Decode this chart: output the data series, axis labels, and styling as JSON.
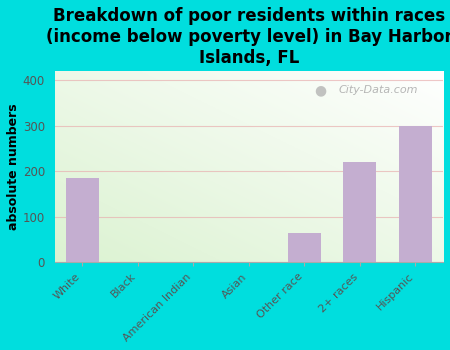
{
  "categories": [
    "White",
    "Black",
    "American Indian",
    "Asian",
    "Other race",
    "2+ races",
    "Hispanic"
  ],
  "values": [
    185,
    0,
    0,
    0,
    65,
    220,
    300
  ],
  "bar_color": "#c4aed0",
  "title": "Breakdown of poor residents within races\n(income below poverty level) in Bay Harbor\nIslands, FL",
  "ylabel": "absolute numbers",
  "ylim": [
    0,
    420
  ],
  "yticks": [
    0,
    100,
    200,
    300,
    400
  ],
  "background_outer": "#00dede",
  "grid_color": "#e8b0b0",
  "watermark": "City-Data.com",
  "title_fontsize": 12,
  "ylabel_fontsize": 9
}
